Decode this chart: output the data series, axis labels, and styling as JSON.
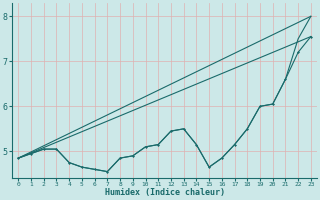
{
  "xlabel": "Humidex (Indice chaleur)",
  "xlim": [
    -0.5,
    23.5
  ],
  "ylim": [
    4.4,
    8.3
  ],
  "yticks": [
    5,
    6,
    7,
    8
  ],
  "xticks": [
    0,
    1,
    2,
    3,
    4,
    5,
    6,
    7,
    8,
    9,
    10,
    11,
    12,
    13,
    14,
    15,
    16,
    17,
    18,
    19,
    20,
    21,
    22,
    23
  ],
  "bg_color": "#cce8e8",
  "grid_color": "#e0b0b0",
  "line_color": "#1a6b6b",
  "zigzag_x": [
    0,
    1,
    2,
    3,
    4,
    5,
    6,
    7,
    8,
    9,
    10,
    11,
    12,
    13,
    14,
    15,
    16,
    17,
    18,
    19,
    20,
    21,
    22,
    23
  ],
  "zigzag_y": [
    4.85,
    4.95,
    5.05,
    5.05,
    4.75,
    4.65,
    4.6,
    4.55,
    4.85,
    4.9,
    5.1,
    5.15,
    5.45,
    5.5,
    5.15,
    4.65,
    4.85,
    5.15,
    5.5,
    6.0,
    6.05,
    6.6,
    7.2,
    7.55
  ],
  "upper_line_x": [
    0,
    23
  ],
  "upper_line_y": [
    4.85,
    8.0
  ],
  "lower_line_x": [
    0,
    23
  ],
  "lower_line_y": [
    4.85,
    7.55
  ],
  "upper_env_x": [
    0,
    1,
    2,
    3,
    4,
    5,
    6,
    7,
    8,
    9,
    10,
    11,
    12,
    13,
    14,
    15,
    16,
    17,
    18,
    19,
    20,
    21,
    22,
    23
  ],
  "upper_env_y": [
    4.85,
    4.95,
    5.05,
    5.05,
    4.75,
    4.65,
    4.6,
    4.55,
    4.85,
    4.9,
    5.1,
    5.15,
    5.45,
    5.5,
    5.15,
    4.65,
    4.85,
    5.15,
    5.5,
    6.0,
    6.05,
    6.6,
    7.5,
    8.0
  ]
}
